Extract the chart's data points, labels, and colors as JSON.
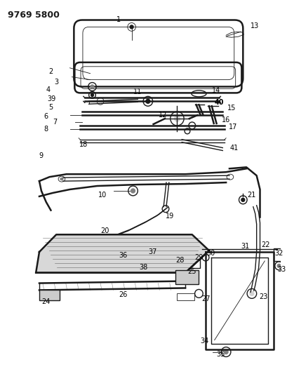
{
  "title_code": "9769 5800",
  "bg_color": "#ffffff",
  "line_color": "#1a1a1a",
  "label_color": "#000000",
  "fig_width": 4.1,
  "fig_height": 5.33,
  "dpi": 100
}
